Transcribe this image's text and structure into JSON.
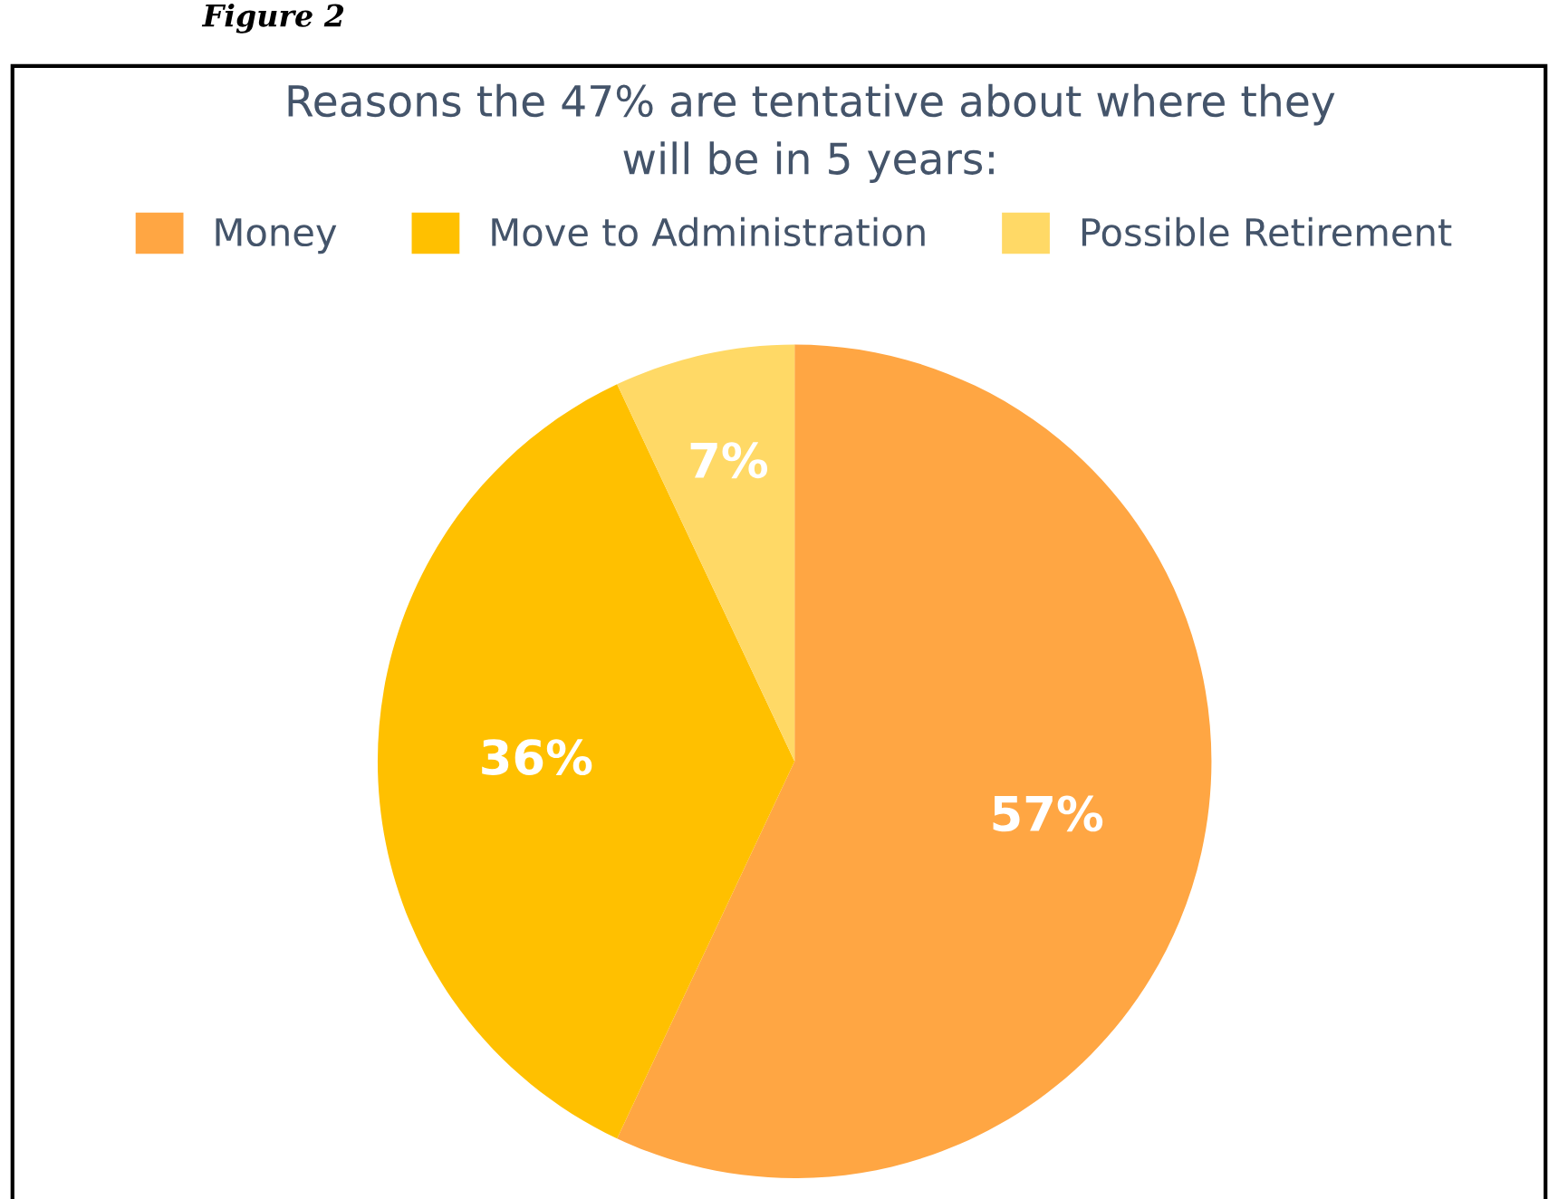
{
  "chart_data": {
    "type": "pie",
    "title": "Reasons the 47% are tentative about where they\nwill be in 5 years:",
    "categories": [
      "Money",
      "Move to Administration",
      "Possible Retirement"
    ],
    "values": [
      57,
      36,
      7
    ],
    "colors": [
      "#ffa643",
      "#ffc000",
      "#ffd966"
    ],
    "value_labels": [
      "57%",
      "36%",
      "7%"
    ],
    "legend": "top",
    "annotations": [
      "Figure 2"
    ]
  }
}
